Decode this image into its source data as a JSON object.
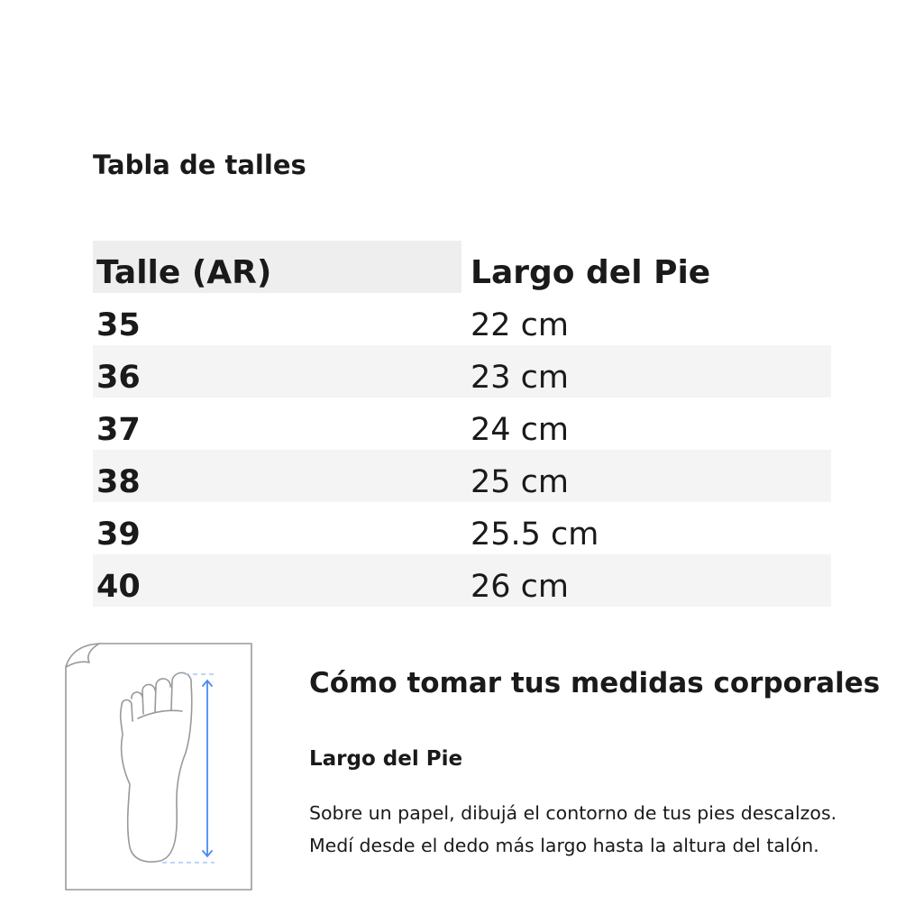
{
  "title": "Tabla de talles",
  "table": {
    "headers": [
      "Talle (AR)",
      "Largo del Pie"
    ],
    "rows": [
      [
        "35",
        "22 cm"
      ],
      [
        "36",
        "23 cm"
      ],
      [
        "37",
        "24 cm"
      ],
      [
        "38",
        "25 cm"
      ],
      [
        "39",
        "25.5 cm"
      ],
      [
        "40",
        "26 cm"
      ]
    ]
  },
  "guide": {
    "heading": "Cómo tomar tus medidas corporales",
    "subheading": "Largo del Pie",
    "lines": [
      "Sobre un papel, dibujá el contorno de tus pies descalzos.",
      "Medí desde el dedo más largo hasta la altura del talón."
    ],
    "illustration_icon": "foot-measurement-icon",
    "accent_color": "#4a8af4"
  }
}
